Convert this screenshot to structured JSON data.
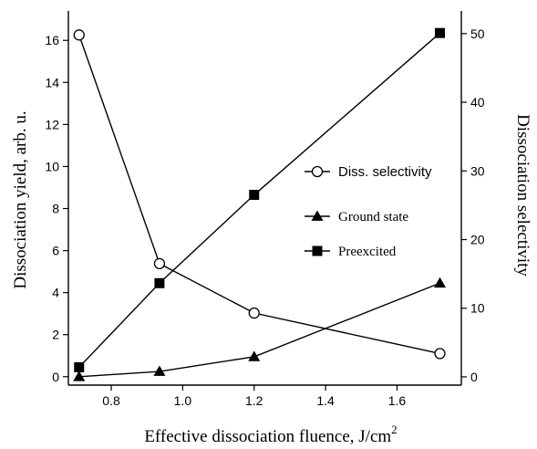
{
  "chart_data": {
    "type": "line",
    "xlabel": "Effective dissociation fluence, J/cm",
    "xlabel_superscript": "2",
    "ylabel": "Dissociation yield, arb. u.",
    "y2label": "Dissociation selectivity",
    "xlim": [
      0.68,
      1.78
    ],
    "ylim": [
      -0.4,
      17.4
    ],
    "y2lim": [
      -1.2,
      53.3
    ],
    "x_ticks": [
      0.8,
      1.0,
      1.2,
      1.4,
      1.6
    ],
    "x_tick_labels": [
      "0.8",
      "1.0",
      "1.2",
      "1.4",
      "1.6"
    ],
    "y_ticks": [
      0,
      2,
      4,
      6,
      8,
      10,
      12,
      14,
      16
    ],
    "y_tick_labels": [
      "0",
      "2",
      "4",
      "6",
      "8",
      "10",
      "12",
      "14",
      "16"
    ],
    "y2_ticks": [
      0,
      10,
      20,
      30,
      40,
      50
    ],
    "y2_tick_labels": [
      "0",
      "10",
      "20",
      "30",
      "40",
      "50"
    ],
    "legend_position": "center-right",
    "grid": false,
    "series": [
      {
        "name": "Diss. selectivity",
        "axis": "right",
        "marker": "open-circle",
        "x": [
          0.71,
          0.935,
          1.2,
          1.72
        ],
        "y": [
          49.8,
          16.5,
          9.3,
          3.4
        ]
      },
      {
        "name": "Ground state",
        "axis": "left",
        "marker": "filled-triangle",
        "x": [
          0.71,
          0.935,
          1.2,
          1.72
        ],
        "y": [
          0.0,
          0.25,
          0.95,
          4.45
        ]
      },
      {
        "name": "Preexcited",
        "axis": "left",
        "marker": "filled-square",
        "x": [
          0.71,
          0.935,
          1.2,
          1.72
        ],
        "y": [
          0.45,
          4.45,
          8.65,
          16.35
        ]
      }
    ]
  }
}
